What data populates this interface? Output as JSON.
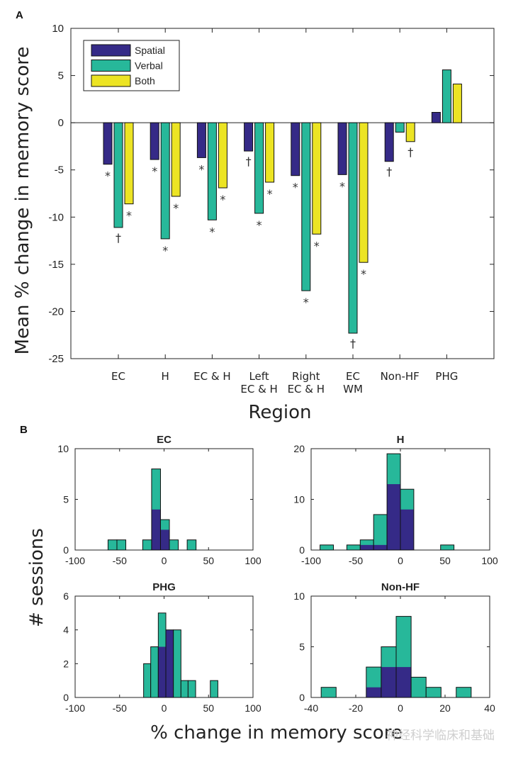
{
  "colors": {
    "Spatial": "#352a87",
    "Verbal": "#27b89a",
    "Both": "#ece424"
  },
  "chart_data": [
    {
      "panel": "A",
      "type": "bar",
      "title": "",
      "xlabel": "Region",
      "ylabel": "Mean % change in memory score",
      "ylim": [
        -25,
        10
      ],
      "yticks": [
        10,
        5,
        0,
        -5,
        -10,
        -15,
        -20,
        -25
      ],
      "legend": {
        "position": "top-left",
        "entries": [
          "Spatial",
          "Verbal",
          "Both"
        ]
      },
      "categories": [
        "EC",
        "H",
        "EC & H",
        "Left\nEC & H",
        "Right\nEC & H",
        "EC\nWM",
        "Non-HF",
        "PHG"
      ],
      "category_lines": [
        [
          "EC"
        ],
        [
          "H"
        ],
        [
          "EC & H"
        ],
        [
          "Left",
          "EC & H"
        ],
        [
          "Right",
          "EC & H"
        ],
        [
          "EC",
          "WM"
        ],
        [
          "Non-HF"
        ],
        [
          "PHG"
        ]
      ],
      "series": [
        {
          "name": "Spatial",
          "values": [
            -4.4,
            -3.9,
            -3.7,
            -3.0,
            -5.6,
            -5.5,
            -4.1,
            1.1
          ],
          "significance": [
            "*",
            "*",
            "*",
            "†",
            "*",
            "*",
            "†",
            ""
          ]
        },
        {
          "name": "Verbal",
          "values": [
            -11.1,
            -12.3,
            -10.3,
            -9.6,
            -17.8,
            -22.3,
            -1.0,
            5.6
          ],
          "significance": [
            "†",
            "*",
            "*",
            "*",
            "*",
            "†",
            "",
            ""
          ]
        },
        {
          "name": "Both",
          "values": [
            -8.6,
            -7.8,
            -6.9,
            -6.3,
            -11.8,
            -14.8,
            -2.0,
            4.1
          ],
          "significance": [
            "*",
            "*",
            "*",
            "*",
            "*",
            "*",
            "†",
            ""
          ]
        }
      ]
    },
    {
      "panel": "B",
      "type": "bar",
      "subtype": "stacked-histogram",
      "ylabel": "# sessions",
      "xlabel": "% change in memory score",
      "series_names": [
        "Spatial",
        "Verbal"
      ],
      "histograms": [
        {
          "title": "EC",
          "xlim": [
            -100,
            100
          ],
          "xticks": [
            -100,
            -50,
            0,
            50,
            100
          ],
          "ylim": [
            0,
            10
          ],
          "yticks": [
            0,
            5,
            10
          ],
          "bins": [
            {
              "x0": -63,
              "x1": -53,
              "total": 1,
              "spatial": 0
            },
            {
              "x0": -53,
              "x1": -43,
              "total": 1,
              "spatial": 0
            },
            {
              "x0": -24,
              "x1": -14,
              "total": 1,
              "spatial": 0
            },
            {
              "x0": -14,
              "x1": -4,
              "total": 8,
              "spatial": 4
            },
            {
              "x0": -4,
              "x1": 6,
              "total": 3,
              "spatial": 2
            },
            {
              "x0": 6,
              "x1": 16,
              "total": 1,
              "spatial": 0
            },
            {
              "x0": 26,
              "x1": 36,
              "total": 1,
              "spatial": 0
            }
          ]
        },
        {
          "title": "H",
          "xlim": [
            -100,
            100
          ],
          "xticks": [
            -100,
            -50,
            0,
            50,
            100
          ],
          "ylim": [
            0,
            20
          ],
          "yticks": [
            0,
            10,
            20
          ],
          "bins": [
            {
              "x0": -90,
              "x1": -75,
              "total": 1,
              "spatial": 0
            },
            {
              "x0": -60,
              "x1": -45,
              "total": 1,
              "spatial": 0
            },
            {
              "x0": -45,
              "x1": -30,
              "total": 2,
              "spatial": 1
            },
            {
              "x0": -30,
              "x1": -15,
              "total": 7,
              "spatial": 1
            },
            {
              "x0": -15,
              "x1": 0,
              "total": 19,
              "spatial": 13
            },
            {
              "x0": 0,
              "x1": 15,
              "total": 12,
              "spatial": 8
            },
            {
              "x0": 45,
              "x1": 60,
              "total": 1,
              "spatial": 0
            }
          ]
        },
        {
          "title": "PHG",
          "xlim": [
            -100,
            100
          ],
          "xticks": [
            -100,
            -50,
            0,
            50,
            100
          ],
          "ylim": [
            0,
            6
          ],
          "yticks": [
            0,
            2,
            4,
            6
          ],
          "bins": [
            {
              "x0": -23,
              "x1": -15,
              "total": 2,
              "spatial": 0
            },
            {
              "x0": -15,
              "x1": -6.5,
              "total": 3,
              "spatial": 0
            },
            {
              "x0": -6.5,
              "x1": 2,
              "total": 5,
              "spatial": 3
            },
            {
              "x0": 2,
              "x1": 10.5,
              "total": 4,
              "spatial": 4
            },
            {
              "x0": 10.5,
              "x1": 19,
              "total": 4,
              "spatial": 0
            },
            {
              "x0": 19,
              "x1": 27,
              "total": 1,
              "spatial": 0
            },
            {
              "x0": 27,
              "x1": 35.5,
              "total": 1,
              "spatial": 0
            },
            {
              "x0": 52,
              "x1": 60.5,
              "total": 1,
              "spatial": 0
            }
          ]
        },
        {
          "title": "Non-HF",
          "xlim": [
            -40,
            40
          ],
          "xticks": [
            -40,
            -20,
            0,
            20,
            40
          ],
          "ylim": [
            0,
            10
          ],
          "yticks": [
            0,
            5,
            10
          ],
          "bins": [
            {
              "x0": -35.5,
              "x1": -28.8,
              "total": 1,
              "spatial": 0
            },
            {
              "x0": -15.3,
              "x1": -8.6,
              "total": 3,
              "spatial": 1
            },
            {
              "x0": -8.6,
              "x1": -1.9,
              "total": 5,
              "spatial": 3
            },
            {
              "x0": -1.9,
              "x1": 4.8,
              "total": 8,
              "spatial": 3
            },
            {
              "x0": 4.8,
              "x1": 11.5,
              "total": 2,
              "spatial": 0
            },
            {
              "x0": 11.5,
              "x1": 18.2,
              "total": 1,
              "spatial": 0
            },
            {
              "x0": 25,
              "x1": 31.7,
              "total": 1,
              "spatial": 0
            }
          ]
        }
      ]
    }
  ],
  "labels": {
    "panel_a": "A",
    "panel_b": "B"
  },
  "watermark": "神经科学临床和基础"
}
